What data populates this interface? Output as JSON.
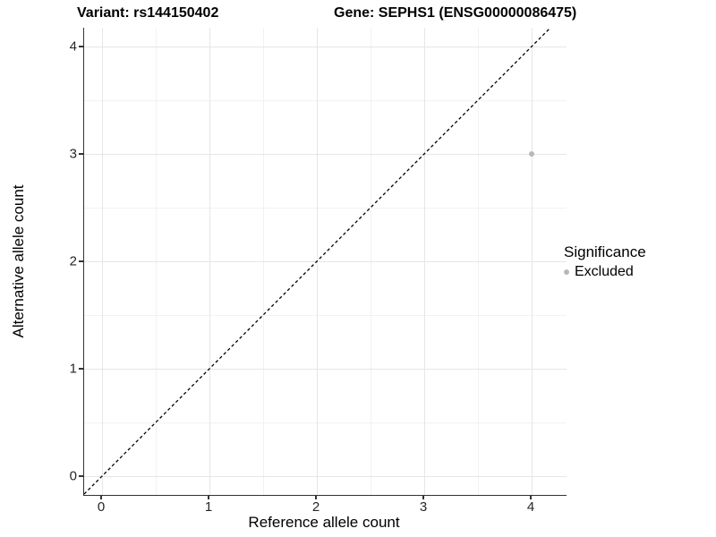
{
  "chart_data": {
    "type": "scatter",
    "title_left": "Variant: rs144150402",
    "title_right": "Gene: SEPHS1 (ENSG00000086475)",
    "xlabel": "Reference allele count",
    "ylabel": "Alternative allele count",
    "x_ticks": [
      0,
      1,
      2,
      3,
      4
    ],
    "y_ticks": [
      0,
      1,
      2,
      3,
      4
    ],
    "xlim": [
      -0.17,
      4.33
    ],
    "ylim": [
      -0.18,
      4.17
    ],
    "grid": "major and minor, light gray on white",
    "series": [
      {
        "name": "Excluded",
        "color": "#b8b8b8",
        "points": [
          {
            "x": 4,
            "y": 3
          }
        ]
      }
    ],
    "reference_line": {
      "type": "identity y=x",
      "style": "dashed",
      "color": "#000000"
    },
    "legend": {
      "title": "Significance",
      "position": "right",
      "entries": [
        {
          "label": "Excluded",
          "color": "#b8b8b8"
        }
      ]
    },
    "colors": {
      "background": "#ffffff",
      "grid_major": "#e6e6e6",
      "grid_minor": "#f2f2f2",
      "axis_line": "#333333",
      "tick_text": "#262626"
    }
  }
}
